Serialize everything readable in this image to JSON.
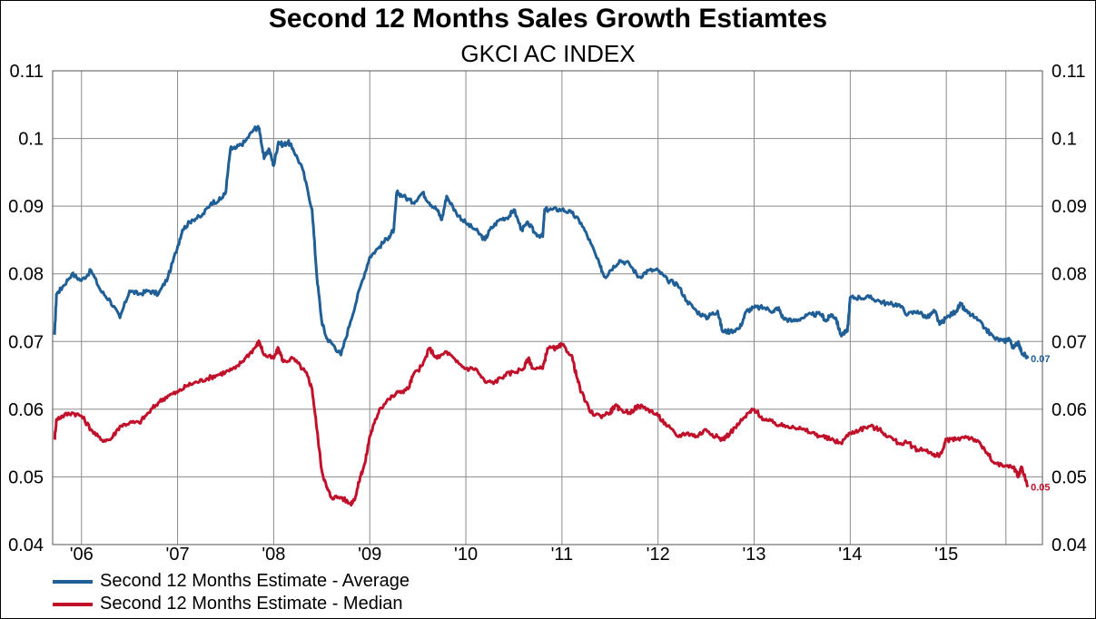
{
  "chart_data": {
    "type": "line",
    "title": "Second 12 Months Sales Growth Estiamtes",
    "subtitle": "GKCI AC INDEX",
    "x_tick_labels": [
      "'06",
      "'07",
      "'08",
      "'09",
      "'10",
      "'11",
      "'12",
      "'13",
      "'14",
      "'15"
    ],
    "y_tick_labels": [
      "0.11",
      "0.1",
      "0.09",
      "0.08",
      "0.07",
      "0.06",
      "0.05",
      "0.04"
    ],
    "ylim": [
      0.04,
      0.11
    ],
    "xlim": [
      2005.7,
      2016.0
    ],
    "grid": true,
    "legend_position": "bottom-left",
    "series": [
      {
        "name": "Second 12 Months Estimate - Average",
        "color": "#1f5f96",
        "end_label": "0.07",
        "points": [
          [
            2005.72,
            0.071
          ],
          [
            2005.74,
            0.077
          ],
          [
            2005.8,
            0.078
          ],
          [
            2005.9,
            0.08
          ],
          [
            2006.0,
            0.079
          ],
          [
            2006.1,
            0.0805
          ],
          [
            2006.2,
            0.0775
          ],
          [
            2006.3,
            0.076
          ],
          [
            2006.4,
            0.0735
          ],
          [
            2006.5,
            0.0775
          ],
          [
            2006.6,
            0.077
          ],
          [
            2006.7,
            0.0775
          ],
          [
            2006.8,
            0.077
          ],
          [
            2006.9,
            0.0795
          ],
          [
            2007.0,
            0.084
          ],
          [
            2007.05,
            0.0865
          ],
          [
            2007.15,
            0.088
          ],
          [
            2007.25,
            0.0885
          ],
          [
            2007.35,
            0.0905
          ],
          [
            2007.45,
            0.091
          ],
          [
            2007.5,
            0.092
          ],
          [
            2007.55,
            0.0985
          ],
          [
            2007.6,
            0.0985
          ],
          [
            2007.7,
            0.0995
          ],
          [
            2007.8,
            0.1015
          ],
          [
            2007.85,
            0.1015
          ],
          [
            2007.9,
            0.097
          ],
          [
            2007.95,
            0.0985
          ],
          [
            2008.0,
            0.096
          ],
          [
            2008.05,
            0.0995
          ],
          [
            2008.1,
            0.099
          ],
          [
            2008.15,
            0.0995
          ],
          [
            2008.2,
            0.0985
          ],
          [
            2008.3,
            0.0955
          ],
          [
            2008.4,
            0.0895
          ],
          [
            2008.45,
            0.0795
          ],
          [
            2008.5,
            0.073
          ],
          [
            2008.55,
            0.0705
          ],
          [
            2008.62,
            0.0695
          ],
          [
            2008.7,
            0.068
          ],
          [
            2008.8,
            0.073
          ],
          [
            2008.9,
            0.078
          ],
          [
            2009.0,
            0.0825
          ],
          [
            2009.1,
            0.084
          ],
          [
            2009.2,
            0.0855
          ],
          [
            2009.25,
            0.0865
          ],
          [
            2009.28,
            0.092
          ],
          [
            2009.35,
            0.0915
          ],
          [
            2009.45,
            0.0905
          ],
          [
            2009.55,
            0.092
          ],
          [
            2009.62,
            0.0905
          ],
          [
            2009.7,
            0.0895
          ],
          [
            2009.75,
            0.088
          ],
          [
            2009.8,
            0.0915
          ],
          [
            2009.9,
            0.089
          ],
          [
            2010.0,
            0.0875
          ],
          [
            2010.1,
            0.0865
          ],
          [
            2010.2,
            0.085
          ],
          [
            2010.25,
            0.0865
          ],
          [
            2010.35,
            0.088
          ],
          [
            2010.45,
            0.0885
          ],
          [
            2010.5,
            0.0895
          ],
          [
            2010.58,
            0.0865
          ],
          [
            2010.65,
            0.0875
          ],
          [
            2010.72,
            0.086
          ],
          [
            2010.8,
            0.0855
          ],
          [
            2010.82,
            0.0895
          ],
          [
            2010.9,
            0.0895
          ],
          [
            2011.0,
            0.0895
          ],
          [
            2011.1,
            0.089
          ],
          [
            2011.2,
            0.0875
          ],
          [
            2011.3,
            0.0845
          ],
          [
            2011.4,
            0.081
          ],
          [
            2011.45,
            0.0795
          ],
          [
            2011.5,
            0.0805
          ],
          [
            2011.6,
            0.082
          ],
          [
            2011.7,
            0.0815
          ],
          [
            2011.8,
            0.0795
          ],
          [
            2011.9,
            0.0805
          ],
          [
            2012.0,
            0.0805
          ],
          [
            2012.1,
            0.079
          ],
          [
            2012.2,
            0.0785
          ],
          [
            2012.3,
            0.076
          ],
          [
            2012.4,
            0.0745
          ],
          [
            2012.5,
            0.0735
          ],
          [
            2012.55,
            0.074
          ],
          [
            2012.62,
            0.0745
          ],
          [
            2012.67,
            0.0715
          ],
          [
            2012.75,
            0.0715
          ],
          [
            2012.85,
            0.072
          ],
          [
            2012.92,
            0.0745
          ],
          [
            2013.0,
            0.075
          ],
          [
            2013.1,
            0.075
          ],
          [
            2013.2,
            0.0745
          ],
          [
            2013.25,
            0.075
          ],
          [
            2013.3,
            0.0735
          ],
          [
            2013.4,
            0.073
          ],
          [
            2013.5,
            0.0735
          ],
          [
            2013.6,
            0.074
          ],
          [
            2013.7,
            0.074
          ],
          [
            2013.75,
            0.073
          ],
          [
            2013.8,
            0.074
          ],
          [
            2013.85,
            0.0735
          ],
          [
            2013.9,
            0.071
          ],
          [
            2013.97,
            0.0715
          ],
          [
            2014.0,
            0.0765
          ],
          [
            2014.1,
            0.0765
          ],
          [
            2014.2,
            0.0765
          ],
          [
            2014.3,
            0.076
          ],
          [
            2014.4,
            0.0755
          ],
          [
            2014.5,
            0.0755
          ],
          [
            2014.6,
            0.074
          ],
          [
            2014.7,
            0.0745
          ],
          [
            2014.8,
            0.0735
          ],
          [
            2014.88,
            0.0745
          ],
          [
            2014.93,
            0.0725
          ],
          [
            2015.0,
            0.0735
          ],
          [
            2015.1,
            0.0745
          ],
          [
            2015.15,
            0.0755
          ],
          [
            2015.2,
            0.0745
          ],
          [
            2015.3,
            0.0735
          ],
          [
            2015.4,
            0.072
          ],
          [
            2015.5,
            0.0705
          ],
          [
            2015.6,
            0.07
          ],
          [
            2015.65,
            0.0705
          ],
          [
            2015.7,
            0.069
          ],
          [
            2015.75,
            0.07
          ],
          [
            2015.78,
            0.0685
          ],
          [
            2015.85,
            0.0675
          ]
        ]
      },
      {
        "name": "Second 12 Months Estimate - Median",
        "color": "#c0102a",
        "end_label": "0.05",
        "points": [
          [
            2005.72,
            0.0555
          ],
          [
            2005.74,
            0.0585
          ],
          [
            2005.8,
            0.059
          ],
          [
            2005.9,
            0.0595
          ],
          [
            2006.0,
            0.059
          ],
          [
            2006.1,
            0.057
          ],
          [
            2006.2,
            0.0555
          ],
          [
            2006.3,
            0.0555
          ],
          [
            2006.4,
            0.0575
          ],
          [
            2006.5,
            0.058
          ],
          [
            2006.6,
            0.058
          ],
          [
            2006.7,
            0.0595
          ],
          [
            2006.8,
            0.061
          ],
          [
            2006.9,
            0.062
          ],
          [
            2007.0,
            0.0625
          ],
          [
            2007.1,
            0.0635
          ],
          [
            2007.2,
            0.064
          ],
          [
            2007.3,
            0.0645
          ],
          [
            2007.4,
            0.065
          ],
          [
            2007.5,
            0.0655
          ],
          [
            2007.6,
            0.066
          ],
          [
            2007.7,
            0.0675
          ],
          [
            2007.8,
            0.069
          ],
          [
            2007.85,
            0.07
          ],
          [
            2007.9,
            0.068
          ],
          [
            2008.0,
            0.0675
          ],
          [
            2008.05,
            0.069
          ],
          [
            2008.1,
            0.067
          ],
          [
            2008.2,
            0.0675
          ],
          [
            2008.3,
            0.066
          ],
          [
            2008.35,
            0.065
          ],
          [
            2008.4,
            0.063
          ],
          [
            2008.45,
            0.057
          ],
          [
            2008.5,
            0.051
          ],
          [
            2008.55,
            0.0485
          ],
          [
            2008.6,
            0.047
          ],
          [
            2008.7,
            0.047
          ],
          [
            2008.8,
            0.046
          ],
          [
            2008.85,
            0.047
          ],
          [
            2008.9,
            0.05
          ],
          [
            2008.95,
            0.052
          ],
          [
            2009.0,
            0.056
          ],
          [
            2009.05,
            0.058
          ],
          [
            2009.1,
            0.06
          ],
          [
            2009.2,
            0.0615
          ],
          [
            2009.3,
            0.0625
          ],
          [
            2009.4,
            0.063
          ],
          [
            2009.45,
            0.065
          ],
          [
            2009.55,
            0.0665
          ],
          [
            2009.62,
            0.069
          ],
          [
            2009.7,
            0.0675
          ],
          [
            2009.8,
            0.0685
          ],
          [
            2009.9,
            0.067
          ],
          [
            2010.0,
            0.066
          ],
          [
            2010.1,
            0.066
          ],
          [
            2010.2,
            0.064
          ],
          [
            2010.3,
            0.064
          ],
          [
            2010.4,
            0.065
          ],
          [
            2010.5,
            0.0655
          ],
          [
            2010.6,
            0.066
          ],
          [
            2010.65,
            0.0675
          ],
          [
            2010.7,
            0.066
          ],
          [
            2010.8,
            0.066
          ],
          [
            2010.85,
            0.069
          ],
          [
            2010.95,
            0.069
          ],
          [
            2011.0,
            0.0695
          ],
          [
            2011.1,
            0.068
          ],
          [
            2011.15,
            0.065
          ],
          [
            2011.2,
            0.0625
          ],
          [
            2011.3,
            0.0595
          ],
          [
            2011.4,
            0.059
          ],
          [
            2011.5,
            0.0595
          ],
          [
            2011.55,
            0.0605
          ],
          [
            2011.6,
            0.06
          ],
          [
            2011.7,
            0.0595
          ],
          [
            2011.8,
            0.0605
          ],
          [
            2011.9,
            0.06
          ],
          [
            2012.0,
            0.059
          ],
          [
            2012.1,
            0.0575
          ],
          [
            2012.2,
            0.056
          ],
          [
            2012.3,
            0.0565
          ],
          [
            2012.4,
            0.056
          ],
          [
            2012.5,
            0.057
          ],
          [
            2012.6,
            0.056
          ],
          [
            2012.67,
            0.0555
          ],
          [
            2012.75,
            0.0565
          ],
          [
            2012.85,
            0.058
          ],
          [
            2012.95,
            0.0595
          ],
          [
            2013.0,
            0.06
          ],
          [
            2013.1,
            0.0585
          ],
          [
            2013.2,
            0.058
          ],
          [
            2013.3,
            0.0575
          ],
          [
            2013.4,
            0.0575
          ],
          [
            2013.5,
            0.057
          ],
          [
            2013.6,
            0.0565
          ],
          [
            2013.7,
            0.056
          ],
          [
            2013.8,
            0.0555
          ],
          [
            2013.9,
            0.055
          ],
          [
            2014.0,
            0.0565
          ],
          [
            2014.1,
            0.057
          ],
          [
            2014.2,
            0.0575
          ],
          [
            2014.3,
            0.057
          ],
          [
            2014.4,
            0.056
          ],
          [
            2014.5,
            0.055
          ],
          [
            2014.6,
            0.055
          ],
          [
            2014.7,
            0.054
          ],
          [
            2014.8,
            0.054
          ],
          [
            2014.88,
            0.053
          ],
          [
            2014.95,
            0.0535
          ],
          [
            2015.0,
            0.0555
          ],
          [
            2015.1,
            0.0555
          ],
          [
            2015.2,
            0.056
          ],
          [
            2015.3,
            0.0555
          ],
          [
            2015.4,
            0.054
          ],
          [
            2015.5,
            0.052
          ],
          [
            2015.6,
            0.0515
          ],
          [
            2015.7,
            0.0515
          ],
          [
            2015.75,
            0.05
          ],
          [
            2015.78,
            0.0515
          ],
          [
            2015.85,
            0.0485
          ]
        ]
      }
    ]
  }
}
